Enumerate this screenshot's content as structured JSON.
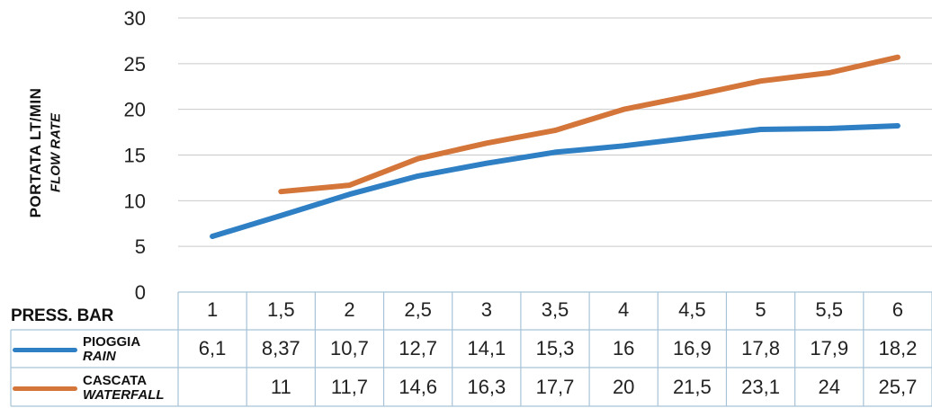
{
  "chart_data": {
    "type": "line",
    "ylabel": "PORTATA  LT/MIN",
    "ylabel_en": "FLOW RATE",
    "xlabel": "PRESS. BAR",
    "ylim": [
      0,
      30
    ],
    "yticks": [
      "0",
      "5",
      "10",
      "15",
      "20",
      "25",
      "30"
    ],
    "grid": true,
    "categories": [
      "1",
      "1,5",
      "2",
      "2,5",
      "3",
      "3,5",
      "4",
      "4,5",
      "5",
      "5,5",
      "6"
    ],
    "series": [
      {
        "name": "PIOGGIA",
        "name_en": "RAIN",
        "color": "#2e7fc4",
        "values": [
          6.1,
          8.37,
          10.7,
          12.7,
          14.1,
          15.3,
          16,
          16.9,
          17.8,
          17.9,
          18.2
        ],
        "labels": [
          "6,1",
          "8,37",
          "10,7",
          "12,7",
          "14,1",
          "15,3",
          "16",
          "16,9",
          "17,8",
          "17,9",
          "18,2"
        ]
      },
      {
        "name": "CASCATA",
        "name_en": "WATERFALL",
        "color": "#d4753a",
        "values": [
          null,
          11,
          11.7,
          14.6,
          16.3,
          17.7,
          20,
          21.5,
          23.1,
          24,
          25.7
        ],
        "labels": [
          "",
          "11",
          "11,7",
          "14,6",
          "16,3",
          "17,7",
          "20",
          "21,5",
          "23,1",
          "24",
          "25,7"
        ]
      }
    ]
  }
}
